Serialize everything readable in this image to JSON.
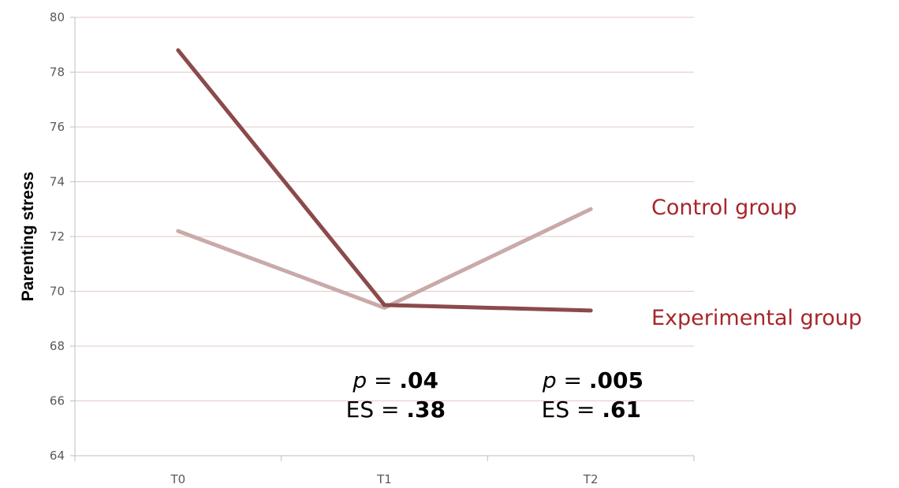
{
  "chart_data": {
    "type": "line",
    "categories": [
      "T0",
      "T1",
      "T2"
    ],
    "ylabel": "Parenting stress",
    "ylim": [
      64,
      80
    ],
    "yticks": [
      "64",
      "66",
      "68",
      "70",
      "72",
      "74",
      "76",
      "78",
      "80"
    ],
    "grid": true,
    "series": [
      {
        "name": "Control group",
        "values": [
          72.2,
          69.4,
          73.0
        ],
        "color": "#c9aaa9"
      },
      {
        "name": "Experimental group",
        "values": [
          78.8,
          69.5,
          69.3
        ],
        "color": "#8b4a4b"
      }
    ],
    "annotations": [
      {
        "category": "T1",
        "p_label": "p",
        "eq1": " = ",
        "p_value": ".04",
        "es_label": "ES",
        "eq2": " = ",
        "es_value": ".38"
      },
      {
        "category": "T2",
        "p_label": "p",
        "eq1": " = ",
        "p_value": ".005",
        "es_label": "ES",
        "eq2": " = ",
        "es_value": ".61"
      }
    ],
    "legend_color": "#a6262b",
    "legend_placement": "right"
  }
}
